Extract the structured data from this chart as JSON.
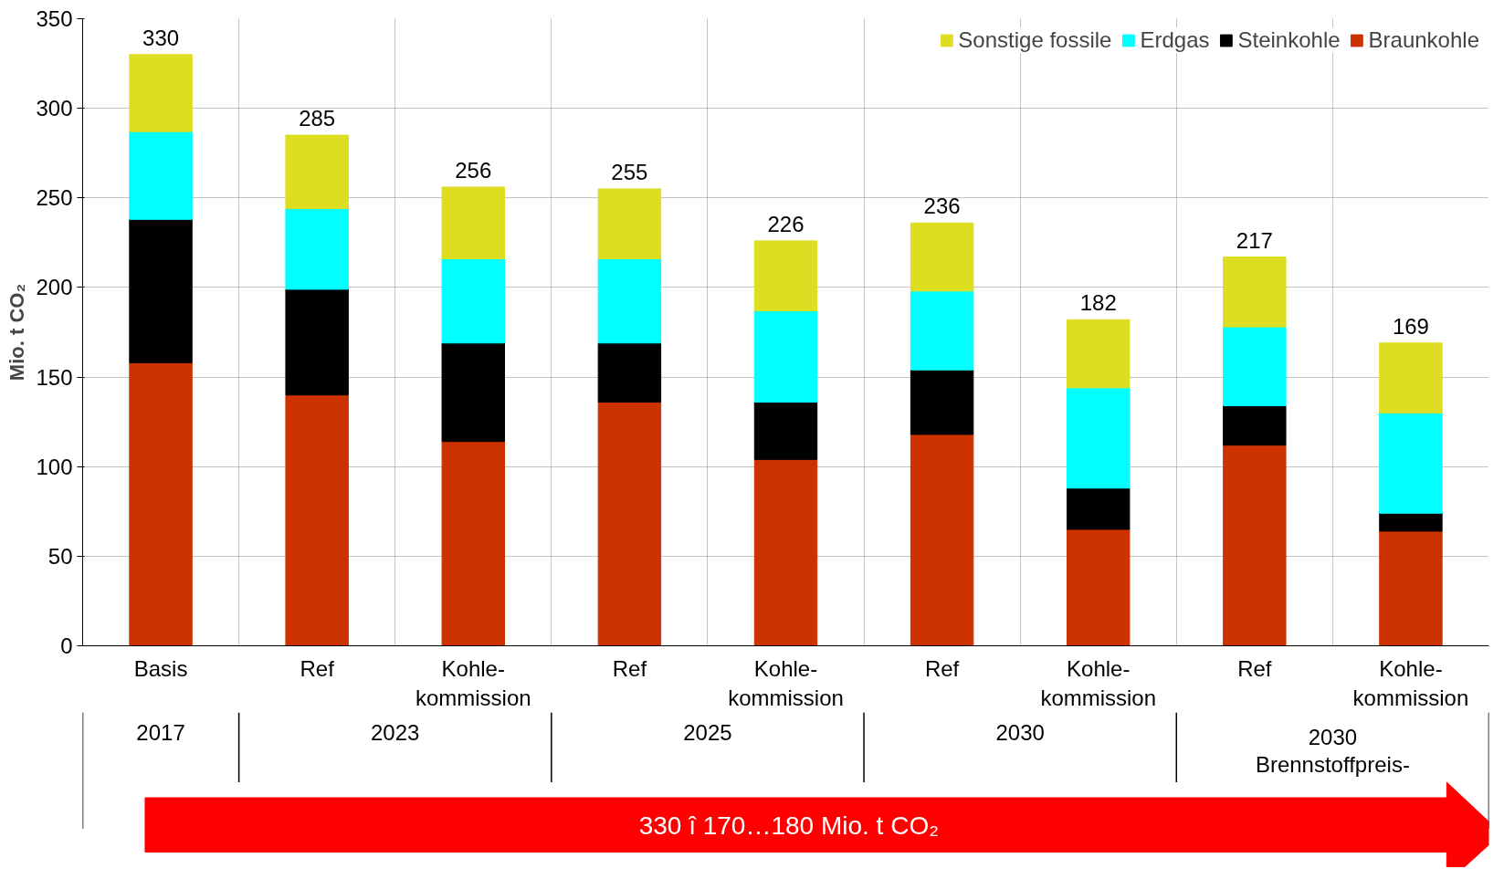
{
  "chart_data": {
    "type": "bar",
    "stacked": true,
    "ylabel": "Mio. t CO₂",
    "categories": [
      "Basis",
      "Ref",
      "Kohle-\nkommission",
      "Ref",
      "Kohle-\nkommission",
      "Ref",
      "Kohle-\nkommission",
      "Ref",
      "Kohle-\nkommission"
    ],
    "series": [
      {
        "name": "Braunkohle",
        "color": "#cc3300",
        "values": [
          158,
          140,
          114,
          136,
          104,
          118,
          65,
          112,
          64
        ]
      },
      {
        "name": "Steinkohle",
        "color": "#000000",
        "values": [
          80,
          59,
          55,
          33,
          32,
          36,
          23,
          22,
          10
        ]
      },
      {
        "name": "Erdgas",
        "color": "#00ffff",
        "values": [
          49,
          45,
          47,
          47,
          51,
          44,
          56,
          44,
          56
        ]
      },
      {
        "name": "Sonstige fossile",
        "color": "#dddd22",
        "values": [
          43,
          41,
          40,
          39,
          39,
          38,
          38,
          39,
          39
        ]
      }
    ],
    "totals": [
      "330",
      "285",
      "256",
      "255",
      "226",
      "236",
      "182",
      "217",
      "169"
    ],
    "ylim": [
      0,
      350
    ],
    "yticks": [
      0,
      50,
      100,
      150,
      200,
      250,
      300,
      350
    ],
    "grid": true,
    "legend": "top right",
    "annotations": [
      "2017",
      "2023",
      "2025",
      "2030",
      "2030\nBrennstoffpreis-",
      "330 î   170…180 Mio. t CO₂"
    ]
  }
}
